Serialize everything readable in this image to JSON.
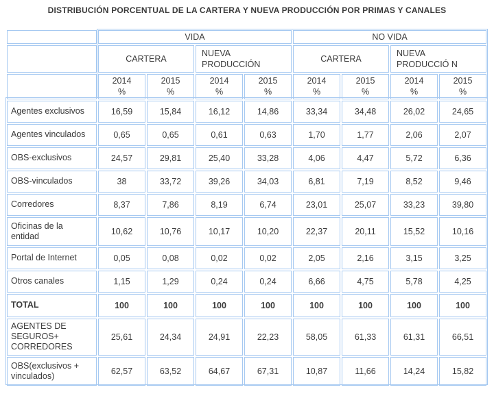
{
  "title": "DISTRIBUCIÓN PORCENTUAL DE LA CARTERA Y NUEVA PRODUCCIÓN POR PRIMAS Y CANALES",
  "chart_data": {
    "type": "table",
    "title": "DISTRIBUCIÓN PORCENTUAL DE LA CARTERA Y NUEVA PRODUCCIÓN POR PRIMAS Y CANALES",
    "column_groups": [
      "VIDA",
      "NO VIDA"
    ],
    "column_subgroups": [
      "CARTERA",
      "NUEVA\nPRODUCCIÓN",
      "CARTERA",
      "NUEVA\nPRODUCCIÓ N"
    ],
    "year_columns": [
      {
        "year": "2014",
        "unit": "%"
      },
      {
        "year": "2015",
        "unit": "%"
      },
      {
        "year": "2014",
        "unit": "%"
      },
      {
        "year": "2015",
        "unit": "%"
      },
      {
        "year": "2014",
        "unit": "%"
      },
      {
        "year": "2015",
        "unit": "%"
      },
      {
        "year": "2014",
        "unit": "%"
      },
      {
        "year": "2015",
        "unit": "%"
      }
    ],
    "rows": [
      {
        "label": "Agentes exclusivos",
        "values": [
          "16,59",
          "15,84",
          "16,12",
          "14,86",
          "33,34",
          "34,48",
          "26,02",
          "24,65"
        ],
        "bold": false
      },
      {
        "label": "Agentes vinculados",
        "values": [
          "0,65",
          "0,65",
          "0,61",
          "0,63",
          "1,70",
          "1,77",
          "2,06",
          "2,07"
        ],
        "bold": false
      },
      {
        "label": "OBS-exclusivos",
        "values": [
          "24,57",
          "29,81",
          "25,40",
          "33,28",
          "4,06",
          "4,47",
          "5,72",
          "6,36"
        ],
        "bold": false
      },
      {
        "label": "OBS-vinculados",
        "values": [
          "38",
          "33,72",
          "39,26",
          "34,03",
          "6,81",
          "7,19",
          "8,52",
          "9,46"
        ],
        "bold": false
      },
      {
        "label": "Corredores",
        "values": [
          "8,37",
          "7,86",
          "8,19",
          "6,74",
          "23,01",
          "25,07",
          "33,23",
          "39,80"
        ],
        "bold": false
      },
      {
        "label": "Oficinas de la\nentidad",
        "values": [
          "10,62",
          "10,76",
          "10,17",
          "10,20",
          "22,37",
          "20,11",
          "15,52",
          "10,16"
        ],
        "bold": false
      },
      {
        "label": "Portal de Internet",
        "values": [
          "0,05",
          "0,08",
          "0,02",
          "0,02",
          "2,05",
          "2,16",
          "3,15",
          "3,25"
        ],
        "bold": false
      },
      {
        "label": "Otros canales",
        "values": [
          "1,15",
          "1,29",
          "0,24",
          "0,24",
          "6,66",
          "4,75",
          "5,78",
          "4,25"
        ],
        "bold": false
      },
      {
        "label": "TOTAL",
        "values": [
          "100",
          "100",
          "100",
          "100",
          "100",
          "100",
          "100",
          "100"
        ],
        "bold": true
      },
      {
        "label": "AGENTES DE\nSEGUROS+\nCORREDORES",
        "values": [
          "25,61",
          "24,34",
          "24,91",
          "22,23",
          "58,05",
          "61,33",
          "61,31",
          "66,51"
        ],
        "bold": false
      },
      {
        "label": "OBS(exclusivos +\nvinculados)",
        "values": [
          "62,57",
          "63,52",
          "64,67",
          "67,31",
          "10,87",
          "11,66",
          "14,24",
          "15,82"
        ],
        "bold": false
      }
    ]
  },
  "colors": {
    "group_band_bg": "#9DCBFA",
    "subgroup_bg": "#D9E8FA",
    "year_bg": "#DCF4FD",
    "cell_border": "#A6C9F1",
    "header_text": "#3A5ED6",
    "body_text": "#3B3B3B",
    "title_text": "#3A3A3A"
  }
}
